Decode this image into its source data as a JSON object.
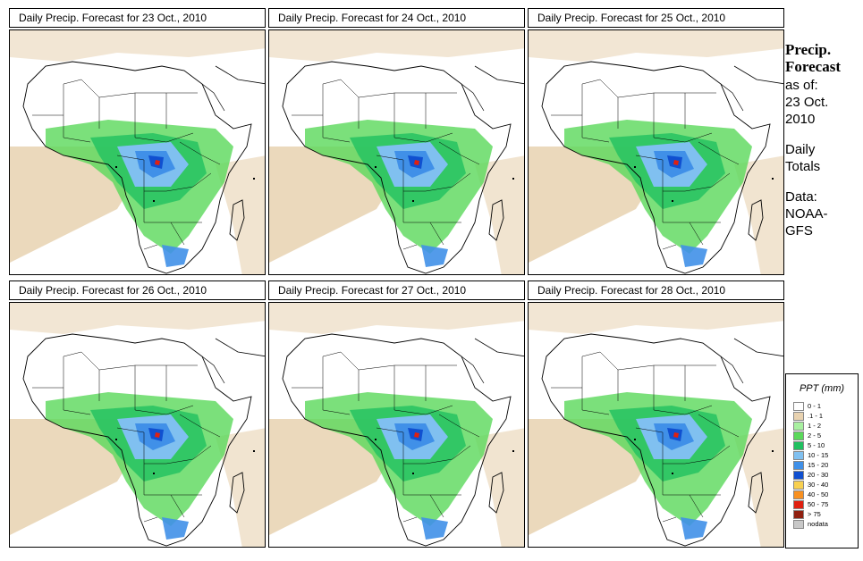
{
  "panels": [
    {
      "title": "Daily Precip. Forecast for  23 Oct., 2010"
    },
    {
      "title": "Daily Precip. Forecast for  24 Oct., 2010"
    },
    {
      "title": "Daily Precip. Forecast for  25 Oct., 2010"
    },
    {
      "title": "Daily Precip. Forecast for  26 Oct., 2010"
    },
    {
      "title": "Daily Precip. Forecast for  27 Oct., 2010"
    },
    {
      "title": "Daily Precip. Forecast for  28 Oct., 2010"
    }
  ],
  "side": {
    "title_line1": "Precip.",
    "title_line2": "Forecast",
    "asof": "as of:",
    "date1": "23 Oct.",
    "date2": "2010",
    "daily1": "Daily",
    "daily2": "Totals",
    "data1": "Data:",
    "data2": "NOAA-",
    "data3": "GFS"
  },
  "legend": {
    "title": "PPT (mm)",
    "items": [
      {
        "label": "0 - 1",
        "color": "#ffffff"
      },
      {
        "label": ".1 - 1",
        "color": "#e8d2b0"
      },
      {
        "label": "1 - 2",
        "color": "#a8f0a0"
      },
      {
        "label": "2 - 5",
        "color": "#5ad85a"
      },
      {
        "label": "5 - 10",
        "color": "#20c060"
      },
      {
        "label": "10 - 15",
        "color": "#80c0f0"
      },
      {
        "label": "15 - 20",
        "color": "#4090e8"
      },
      {
        "label": "20 - 30",
        "color": "#1050d0"
      },
      {
        "label": "30 - 40",
        "color": "#f8d050"
      },
      {
        "label": "40 - 50",
        "color": "#f89020"
      },
      {
        "label": "50 - 75",
        "color": "#e02010"
      },
      {
        "label": "> 75",
        "color": "#902010"
      },
      {
        "label": "nodata",
        "color": "#c8c8c8"
      }
    ]
  }
}
